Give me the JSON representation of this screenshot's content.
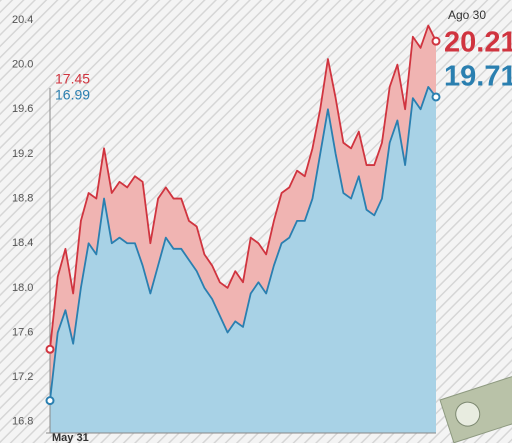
{
  "chart_data": {
    "type": "line",
    "categories": [
      "May 31",
      null,
      null,
      null,
      null,
      null,
      null,
      null,
      null,
      null,
      null,
      null,
      null,
      null,
      null,
      null,
      null,
      null,
      null,
      null,
      null,
      null,
      null,
      null,
      null,
      null,
      null,
      null,
      null,
      null,
      null,
      null,
      null,
      null,
      null,
      null,
      null,
      null,
      null,
      null,
      null,
      null,
      null,
      null,
      null,
      null,
      null,
      null,
      null,
      null,
      "Ago 30"
    ],
    "series": [
      {
        "color": "#d0343f",
        "fill": "#f0b4b2",
        "values": [
          17.45,
          18.1,
          18.35,
          17.95,
          18.6,
          18.85,
          18.8,
          19.25,
          18.85,
          18.95,
          18.9,
          19.0,
          18.95,
          18.4,
          18.8,
          18.9,
          18.8,
          18.8,
          18.6,
          18.55,
          18.3,
          18.2,
          18.05,
          18.0,
          18.15,
          18.05,
          18.45,
          18.4,
          18.3,
          18.6,
          18.85,
          18.9,
          19.05,
          19.0,
          19.25,
          19.6,
          20.05,
          19.7,
          19.3,
          19.25,
          19.4,
          19.1,
          19.1,
          19.3,
          19.8,
          20.0,
          19.6,
          20.25,
          20.15,
          20.35,
          20.21
        ]
      },
      {
        "color": "#2a7fb0",
        "fill": "#a8d2e6",
        "values": [
          16.99,
          17.6,
          17.8,
          17.5,
          18.0,
          18.4,
          18.3,
          18.8,
          18.4,
          18.45,
          18.4,
          18.4,
          18.2,
          17.95,
          18.2,
          18.45,
          18.35,
          18.35,
          18.25,
          18.15,
          18.0,
          17.9,
          17.75,
          17.6,
          17.7,
          17.65,
          17.95,
          18.05,
          17.95,
          18.2,
          18.4,
          18.45,
          18.6,
          18.6,
          18.8,
          19.2,
          19.6,
          19.2,
          18.85,
          18.8,
          19.0,
          18.7,
          18.65,
          18.8,
          19.3,
          19.5,
          19.1,
          19.7,
          19.6,
          19.8,
          19.71
        ]
      }
    ],
    "ylim": [
      16.7,
      20.5
    ],
    "yticks": [
      16.8,
      17.2,
      17.6,
      {
        "value": 18.0,
        "label": "18.0"
      },
      18.4,
      18.8,
      19.2,
      19.6,
      {
        "value": 20.0,
        "label": "20.0"
      },
      20.4
    ]
  }
}
